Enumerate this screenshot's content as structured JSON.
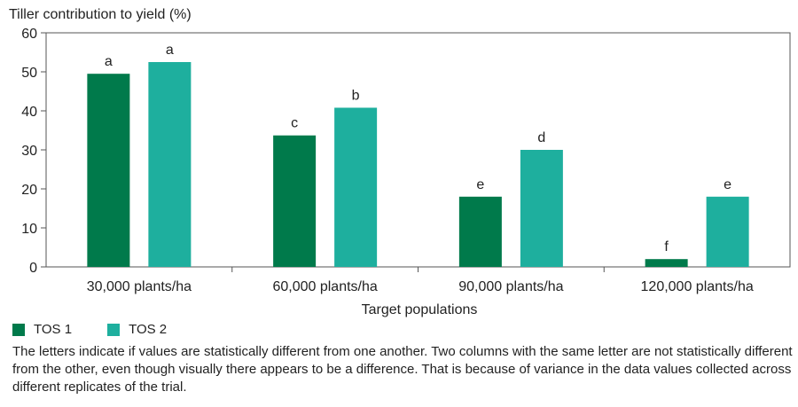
{
  "chart_data": {
    "type": "bar",
    "ylabel": "Tiller contribution to yield (%)",
    "xlabel": "Target populations",
    "categories": [
      "30,000 plants/ha",
      "60,000 plants/ha",
      "90,000 plants/ha",
      "120,000 plants/ha"
    ],
    "series": [
      {
        "name": "TOS 1",
        "color": "#007A4B",
        "values": [
          49.5,
          33.7,
          18,
          2
        ],
        "labels": [
          "a",
          "c",
          "e",
          "f"
        ]
      },
      {
        "name": "TOS 2",
        "color": "#1EAF9E",
        "values": [
          52.5,
          40.8,
          30,
          18
        ],
        "labels": [
          "a",
          "b",
          "d",
          "e"
        ]
      }
    ],
    "ylim": [
      0,
      60
    ],
    "yticks": [
      "0",
      "10",
      "20",
      "30",
      "40",
      "50",
      "60"
    ],
    "grid": false,
    "legend_position": "bottom-left"
  },
  "note": "The letters indicate if values are statistically different from one another. Two columns with the same letter are not statistically different from the other, even though visually there appears to be a difference. That is because of variance in the data values collected across different replicates of the trial."
}
